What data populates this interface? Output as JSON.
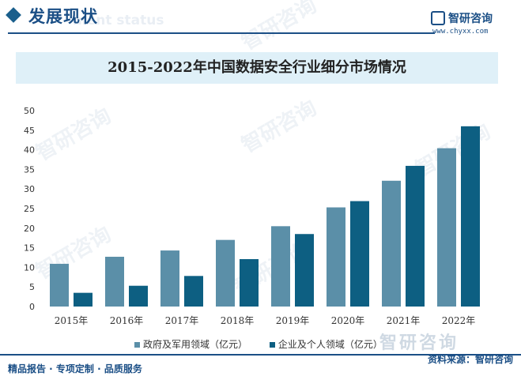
{
  "header": {
    "title": "发展现状",
    "subtitle_en": "ment status",
    "brand_name": "智研咨询",
    "brand_url": "www.chyxx.com"
  },
  "colors": {
    "series1": "#5b8fa8",
    "series2": "#0d5f82",
    "brand": "#1b4f86",
    "title_band": "#dff0f8"
  },
  "chart_data": {
    "type": "bar",
    "title": "2015-2022年中国数据安全行业细分市场情况",
    "categories": [
      "2015年",
      "2016年",
      "2017年",
      "2018年",
      "2019年",
      "2020年",
      "2021年",
      "2022年"
    ],
    "series": [
      {
        "name": "政府及军用领域（亿元）",
        "values": [
          10.9,
          12.7,
          14.3,
          17.0,
          20.5,
          25.3,
          32.1,
          40.4
        ]
      },
      {
        "name": "企业及个人领域（亿元）",
        "values": [
          3.5,
          5.3,
          7.8,
          12.1,
          18.5,
          26.9,
          35.9,
          46.0
        ]
      }
    ],
    "ylim": [
      0,
      50
    ],
    "yticks": [
      0,
      5,
      10,
      15,
      20,
      25,
      30,
      35,
      40,
      45,
      50
    ],
    "grid": false,
    "legend": "bottom"
  },
  "watermark": "智研咨询",
  "footer": {
    "left": "精品报告 · 专项定制 · 品质服务",
    "source": "资料来源：智研咨询"
  }
}
